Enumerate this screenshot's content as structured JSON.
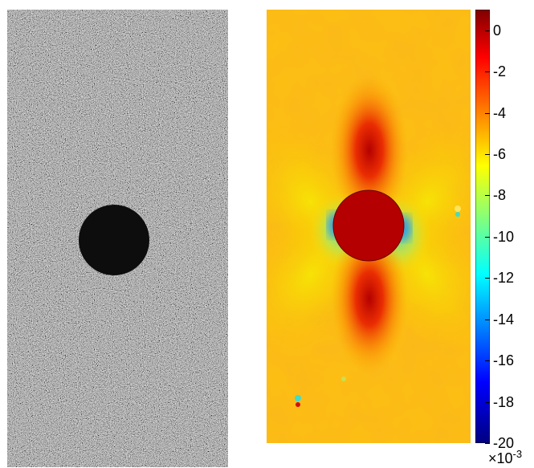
{
  "left_image": {
    "description_name": "speckle-pattern-photo"
  },
  "right_image": {
    "description_name": "strain-field-map"
  },
  "colorbar": {
    "ticks": [
      "0",
      "-2",
      "-4",
      "-6",
      "-8",
      "-10",
      "-12",
      "-14",
      "-16",
      "-18",
      "-20"
    ],
    "range": [
      -20,
      1
    ],
    "scale_multiplier_base": "×10",
    "scale_multiplier_exp": "-3",
    "colormap": "jet"
  }
}
